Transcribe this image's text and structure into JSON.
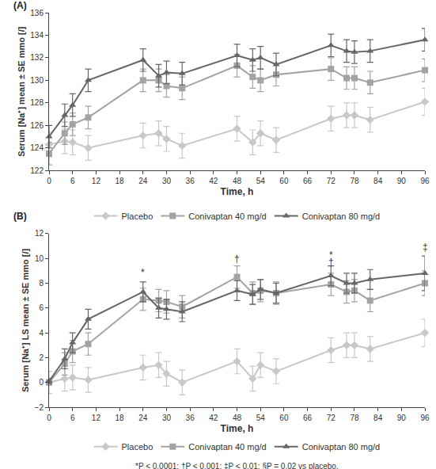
{
  "chart_data": [
    {
      "type": "line",
      "label": "(A)",
      "x_label": "Time, h",
      "y_label": "Serum [Na⁺] mean ± SE mmo [/]",
      "x": [
        0,
        4,
        6,
        10,
        24,
        28,
        30,
        34,
        48,
        52,
        54,
        58,
        72,
        76,
        78,
        82,
        96
      ],
      "xlim": [
        0,
        96
      ],
      "xticks": [
        0,
        6,
        12,
        18,
        24,
        30,
        36,
        42,
        48,
        54,
        60,
        66,
        72,
        78,
        84,
        90,
        96
      ],
      "ylim": [
        122,
        136
      ],
      "yticks": [
        122,
        124,
        126,
        128,
        130,
        132,
        134,
        136
      ],
      "grid": false,
      "legend": "bottom",
      "series": [
        {
          "name": "Placebo",
          "color": "#c8c8c8",
          "marker": "diamond",
          "line_style": "solid",
          "values": [
            124.3,
            124.6,
            124.5,
            124.0,
            125.1,
            125.3,
            124.8,
            124.2,
            125.7,
            124.5,
            125.3,
            124.7,
            126.6,
            126.9,
            126.9,
            126.5,
            128.1
          ],
          "errors": [
            1.1,
            1.1,
            1.1,
            1.1,
            1.1,
            1.1,
            1.1,
            1.1,
            1.1,
            1.1,
            1.1,
            1.1,
            1.1,
            1.1,
            1.1,
            1.1,
            1.2
          ]
        },
        {
          "name": "Conivaptan 40 mg/d",
          "color": "#a3a3a3",
          "marker": "square",
          "line_style": "solid",
          "values": [
            123.5,
            125.3,
            126.1,
            126.7,
            130.0,
            130.0,
            129.5,
            129.3,
            131.3,
            130.3,
            130.0,
            130.5,
            131.0,
            130.2,
            130.2,
            129.8,
            130.9
          ],
          "errors": [
            1.0,
            1.0,
            1.0,
            1.0,
            1.0,
            1.0,
            1.0,
            1.0,
            1.0,
            1.0,
            1.0,
            1.0,
            1.0,
            1.0,
            1.0,
            1.0,
            1.0
          ]
        },
        {
          "name": "Conivaptan 80 mg/d",
          "color": "#666666",
          "marker": "triangle",
          "line_style": "solid",
          "values": [
            125.0,
            126.9,
            127.8,
            130.0,
            131.8,
            130.4,
            130.7,
            130.6,
            132.2,
            131.8,
            132.0,
            131.4,
            133.1,
            132.6,
            132.5,
            132.6,
            133.6
          ],
          "errors": [
            1.0,
            1.0,
            1.0,
            1.0,
            1.0,
            1.0,
            1.0,
            1.0,
            1.0,
            1.0,
            1.0,
            1.0,
            1.0,
            1.0,
            1.0,
            1.0,
            1.0
          ]
        }
      ]
    },
    {
      "type": "line",
      "label": "(B)",
      "x_label": "Time, h",
      "y_label": "Serum [Na⁺] LS mean ± SE mmo [/]",
      "x": [
        0,
        4,
        6,
        10,
        24,
        28,
        30,
        34,
        48,
        52,
        54,
        58,
        72,
        76,
        78,
        82,
        96
      ],
      "xlim": [
        0,
        96
      ],
      "xticks": [
        0,
        6,
        12,
        18,
        24,
        30,
        36,
        42,
        48,
        54,
        60,
        66,
        72,
        78,
        84,
        90,
        96
      ],
      "ylim": [
        -2,
        12
      ],
      "yticks": [
        {
          "value": -2,
          "label": "−2"
        },
        0,
        2,
        4,
        6,
        8,
        10,
        12
      ],
      "grid": false,
      "legend": "bottom",
      "series": [
        {
          "name": "Placebo",
          "color": "#c8c8c8",
          "marker": "diamond",
          "line_style": "solid",
          "values": [
            0.0,
            0.3,
            0.4,
            0.2,
            1.2,
            1.4,
            0.7,
            0.0,
            1.7,
            0.3,
            1.4,
            0.9,
            2.6,
            3.0,
            3.0,
            2.7,
            4.0
          ],
          "errors": [
            0.9,
            1.0,
            1.0,
            1.0,
            1.0,
            1.0,
            1.0,
            1.0,
            1.0,
            1.0,
            1.0,
            1.0,
            1.0,
            1.0,
            1.0,
            1.0,
            1.1
          ]
        },
        {
          "name": "Conivaptan 40 mg/d",
          "color": "#a3a3a3",
          "marker": "square",
          "line_style": "solid",
          "values": [
            0.0,
            1.5,
            2.5,
            3.1,
            6.7,
            6.6,
            6.5,
            6.1,
            8.5,
            7.2,
            7.4,
            7.2,
            7.9,
            7.3,
            7.4,
            6.6,
            8.0
          ],
          "errors": [
            0.2,
            0.9,
            0.9,
            0.9,
            0.9,
            0.9,
            0.9,
            0.9,
            0.9,
            0.9,
            0.9,
            0.9,
            0.9,
            0.9,
            0.9,
            0.9,
            1.0
          ]
        },
        {
          "name": "Conivaptan 80 mg/d",
          "color": "#666666",
          "marker": "triangle",
          "line_style": "solid",
          "values": [
            0.1,
            1.9,
            3.2,
            5.1,
            7.3,
            6.0,
            5.9,
            5.7,
            7.4,
            7.1,
            7.5,
            7.2,
            8.6,
            8.0,
            8.0,
            8.3,
            8.8
          ],
          "errors": [
            0.2,
            0.8,
            0.8,
            0.8,
            0.8,
            0.8,
            0.8,
            0.8,
            0.8,
            0.8,
            0.8,
            0.8,
            0.8,
            0.8,
            0.8,
            0.8,
            1.4
          ]
        }
      ],
      "annotations": [
        {
          "x": 24,
          "y": 8.3,
          "text": "*"
        },
        {
          "x": 48,
          "y": 9.4,
          "text": "†"
        },
        {
          "x": 72,
          "y": 9.7,
          "text": "*"
        },
        {
          "x": 72,
          "y": 9.1,
          "text": "†"
        },
        {
          "x": 96,
          "y": 10.3,
          "text": "‡"
        }
      ],
      "note": "*P < 0.0001; †P < 0.001; ‡P < 0.01; §P = 0.02 vs placebo."
    }
  ]
}
